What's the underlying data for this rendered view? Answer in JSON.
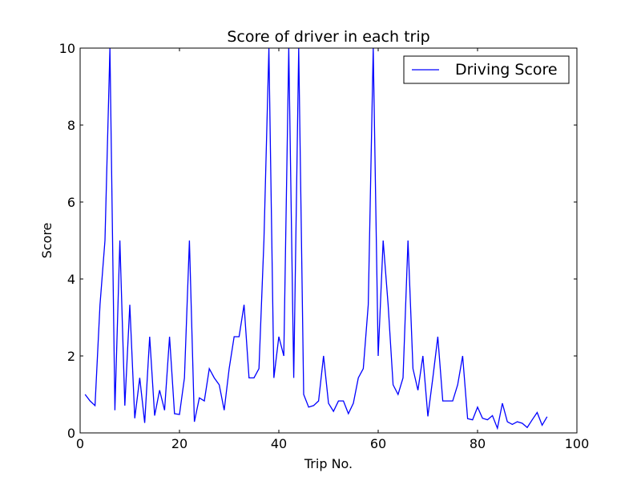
{
  "chart_data": {
    "type": "line",
    "title": "Score of driver in each trip",
    "xlabel": "Trip No.",
    "ylabel": "Score",
    "xlim": [
      0,
      100
    ],
    "ylim": [
      0,
      10
    ],
    "xticks": [
      "0",
      "20",
      "40",
      "60",
      "80",
      "100"
    ],
    "yticks": [
      "0",
      "2",
      "4",
      "6",
      "8",
      "10"
    ],
    "grid": false,
    "legend_position": "top-right",
    "series": [
      {
        "name": "Driving Score",
        "color": "#0000ff",
        "x": [
          1,
          2,
          3,
          4,
          5,
          6,
          7,
          8,
          9,
          10,
          11,
          12,
          13,
          14,
          15,
          16,
          17,
          18,
          19,
          20,
          21,
          22,
          23,
          24,
          25,
          26,
          27,
          28,
          29,
          30,
          31,
          32,
          33,
          34,
          35,
          36,
          37,
          38,
          39,
          40,
          41,
          42,
          43,
          44,
          45,
          46,
          47,
          48,
          49,
          50,
          51,
          52,
          53,
          54,
          55,
          56,
          57,
          58,
          59,
          60,
          61,
          62,
          63,
          64,
          65,
          66,
          67,
          68,
          69,
          70,
          71,
          72,
          73,
          74,
          75,
          76,
          77,
          78,
          79,
          80,
          81,
          82,
          83,
          84,
          85,
          86,
          87,
          88,
          89,
          90,
          91,
          92,
          93,
          94
        ],
        "values": [
          1.0,
          0.83,
          0.71,
          3.33,
          5.0,
          10.0,
          0.59,
          5.0,
          0.71,
          3.33,
          0.38,
          1.43,
          0.26,
          2.5,
          0.45,
          1.11,
          0.59,
          2.5,
          0.5,
          0.48,
          1.43,
          5.0,
          0.29,
          0.91,
          0.83,
          1.67,
          1.43,
          1.25,
          0.59,
          1.67,
          2.5,
          2.5,
          3.33,
          1.43,
          1.43,
          1.67,
          5.0,
          10.0,
          1.43,
          2.5,
          2.0,
          10.0,
          1.43,
          10.0,
          1.0,
          0.67,
          0.71,
          0.83,
          2.0,
          0.77,
          0.56,
          0.83,
          0.83,
          0.5,
          0.77,
          1.43,
          1.67,
          3.33,
          10.0,
          2.0,
          5.0,
          3.33,
          1.25,
          1.0,
          1.43,
          5.0,
          1.67,
          1.11,
          2.0,
          0.43,
          1.43,
          2.5,
          0.83,
          0.83,
          0.83,
          1.25,
          2.0,
          0.37,
          0.34,
          0.67,
          0.38,
          0.34,
          0.45,
          0.12,
          0.77,
          0.29,
          0.22,
          0.29,
          0.25,
          0.14,
          0.34,
          0.53,
          0.2,
          0.42
        ]
      }
    ]
  }
}
